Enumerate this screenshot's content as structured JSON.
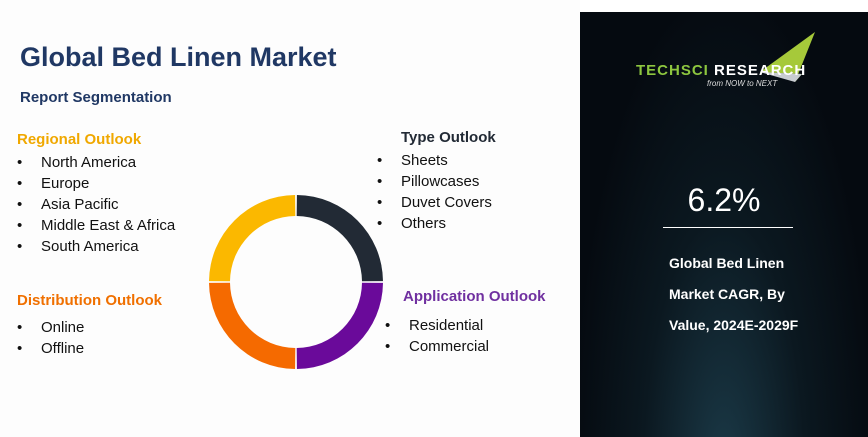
{
  "title": "Global Bed Linen Market",
  "subtitle": "Report Segmentation",
  "sections": {
    "regional": {
      "heading": "Regional Outlook",
      "color": "#f0a800",
      "items": [
        "North America",
        "Europe",
        "Asia Pacific",
        "Middle East &  Africa",
        "South America"
      ]
    },
    "distribution": {
      "heading": "Distribution Outlook",
      "color": "#f07000",
      "items": [
        "Online",
        "Offline"
      ]
    },
    "type": {
      "heading": "Type Outlook",
      "color": "#222a35",
      "items": [
        "Sheets",
        "Pillowcases",
        "Duvet Covers",
        "Others"
      ]
    },
    "application": {
      "heading": "Application Outlook",
      "color": "#7030a0",
      "items": [
        "Residential",
        "Commercial"
      ]
    }
  },
  "donut_colors": [
    "#222a35",
    "#6a0a9a",
    "#f56a00",
    "#fbb800"
  ],
  "panel": {
    "logo": "TECHSCI RESEARCH",
    "tagline": "from NOW to NEXT",
    "cagr": "6.2%",
    "desc_lines": [
      "Global Bed Linen",
      "Market CAGR, By",
      "Value, 2024E-2029F"
    ]
  }
}
